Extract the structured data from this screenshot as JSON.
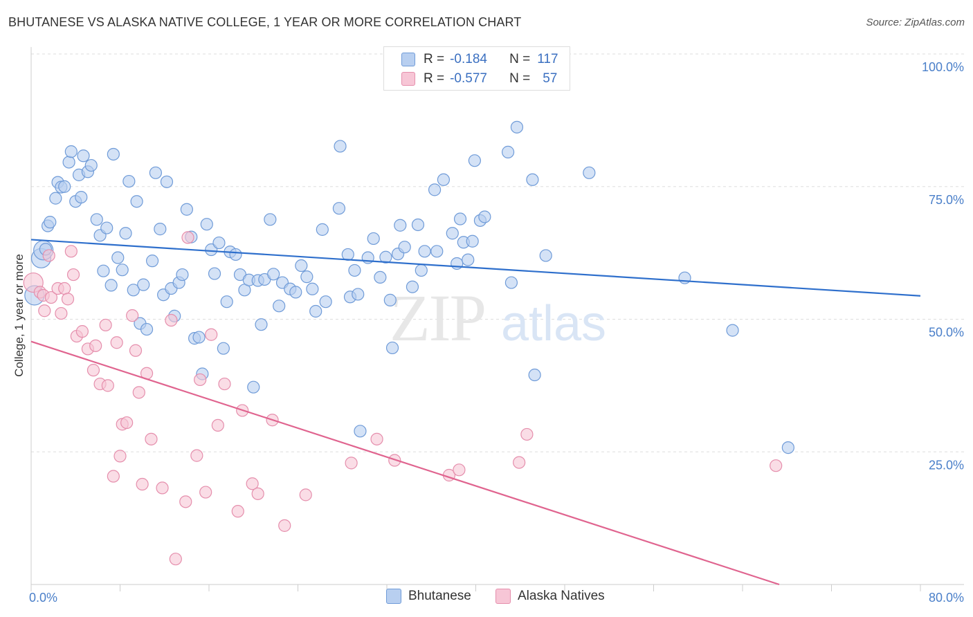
{
  "title": "BHUTANESE VS ALASKA NATIVE COLLEGE, 1 YEAR OR MORE CORRELATION CHART",
  "source": "Source: ZipAtlas.com",
  "watermark": {
    "zip": "ZIP",
    "atlas": "atlas"
  },
  "legend": {
    "rows": [
      {
        "r_label": "R =",
        "r_value": "-0.184",
        "n_label": "N =",
        "n_value": "117"
      },
      {
        "r_label": "R =",
        "r_value": "-0.577",
        "n_label": "N =",
        "n_value": "57"
      }
    ]
  },
  "chart_data": {
    "type": "scatter",
    "title": "BHUTANESE VS ALASKA NATIVE COLLEGE, 1 YEAR OR MORE CORRELATION CHART",
    "xlabel": "",
    "ylabel": "College, 1 year or more",
    "xlim": [
      0,
      80
    ],
    "ylim": [
      0,
      100
    ],
    "x_tick_labels": [
      "0.0%",
      "80.0%"
    ],
    "y_tick_labels": [
      "25.0%",
      "50.0%",
      "75.0%",
      "100.0%"
    ],
    "y_tick_values": [
      25,
      50,
      75,
      100
    ],
    "grid": true,
    "colors": {
      "blue": "#6f9bd8",
      "blue_fill": "#b8cff0",
      "blue_line": "#2e6fcc",
      "pink": "#e58eac",
      "pink_fill": "#f7c6d6",
      "pink_line": "#e0648f",
      "tick": "#4a7fc9"
    },
    "series": [
      {
        "name": "Bhutanese",
        "r": -0.184,
        "n": 117,
        "trend": {
          "x": [
            0,
            80
          ],
          "y": [
            65.0,
            54.4
          ]
        },
        "points": [
          [
            0.3,
            54.5
          ],
          [
            0.9,
            61.5
          ],
          [
            1.1,
            63.0
          ],
          [
            1.3,
            63.2
          ],
          [
            1.5,
            67.6
          ],
          [
            1.7,
            68.3
          ],
          [
            2.2,
            72.8
          ],
          [
            2.4,
            75.8
          ],
          [
            2.7,
            74.9
          ],
          [
            3.0,
            75.0
          ],
          [
            3.4,
            79.6
          ],
          [
            3.6,
            81.6
          ],
          [
            4.0,
            72.2
          ],
          [
            4.3,
            77.2
          ],
          [
            4.5,
            73.0
          ],
          [
            4.7,
            80.8
          ],
          [
            5.1,
            77.8
          ],
          [
            5.4,
            79.0
          ],
          [
            5.9,
            68.8
          ],
          [
            6.2,
            65.8
          ],
          [
            6.5,
            59.1
          ],
          [
            6.8,
            67.2
          ],
          [
            7.2,
            56.4
          ],
          [
            7.4,
            81.1
          ],
          [
            7.8,
            61.6
          ],
          [
            8.2,
            59.3
          ],
          [
            8.5,
            66.2
          ],
          [
            8.8,
            76.0
          ],
          [
            9.2,
            55.5
          ],
          [
            9.5,
            72.2
          ],
          [
            9.8,
            49.2
          ],
          [
            10.1,
            56.5
          ],
          [
            10.4,
            48.1
          ],
          [
            10.9,
            61.0
          ],
          [
            11.2,
            77.6
          ],
          [
            11.6,
            67.0
          ],
          [
            11.9,
            54.6
          ],
          [
            12.2,
            75.9
          ],
          [
            12.6,
            55.8
          ],
          [
            12.9,
            50.6
          ],
          [
            13.3,
            56.9
          ],
          [
            13.6,
            58.4
          ],
          [
            14.0,
            70.7
          ],
          [
            14.4,
            65.5
          ],
          [
            14.7,
            46.4
          ],
          [
            15.1,
            46.6
          ],
          [
            15.4,
            39.7
          ],
          [
            15.8,
            67.9
          ],
          [
            16.2,
            63.1
          ],
          [
            16.5,
            58.6
          ],
          [
            16.9,
            64.4
          ],
          [
            17.3,
            44.5
          ],
          [
            17.6,
            53.3
          ],
          [
            17.9,
            62.7
          ],
          [
            18.4,
            62.2
          ],
          [
            18.8,
            58.4
          ],
          [
            19.2,
            55.5
          ],
          [
            19.6,
            57.4
          ],
          [
            20.0,
            37.2
          ],
          [
            20.4,
            57.3
          ],
          [
            20.7,
            49.0
          ],
          [
            21.0,
            57.5
          ],
          [
            21.5,
            68.8
          ],
          [
            21.8,
            58.5
          ],
          [
            22.3,
            52.5
          ],
          [
            22.6,
            56.9
          ],
          [
            23.3,
            55.7
          ],
          [
            23.8,
            55.1
          ],
          [
            24.3,
            60.1
          ],
          [
            24.8,
            58.0
          ],
          [
            25.3,
            55.7
          ],
          [
            25.6,
            51.5
          ],
          [
            26.2,
            66.9
          ],
          [
            26.5,
            53.3
          ],
          [
            27.7,
            70.9
          ],
          [
            27.8,
            82.6
          ],
          [
            28.5,
            62.2
          ],
          [
            28.7,
            54.2
          ],
          [
            29.1,
            59.2
          ],
          [
            29.4,
            54.7
          ],
          [
            29.6,
            28.9
          ],
          [
            30.3,
            61.6
          ],
          [
            30.8,
            65.2
          ],
          [
            31.4,
            57.9
          ],
          [
            31.9,
            61.7
          ],
          [
            32.3,
            53.6
          ],
          [
            32.5,
            44.6
          ],
          [
            33.0,
            62.3
          ],
          [
            33.2,
            67.7
          ],
          [
            33.6,
            63.6
          ],
          [
            34.3,
            56.1
          ],
          [
            34.8,
            67.8
          ],
          [
            35.1,
            59.2
          ],
          [
            35.4,
            62.8
          ],
          [
            36.3,
            74.4
          ],
          [
            36.5,
            62.8
          ],
          [
            37.1,
            76.3
          ],
          [
            37.9,
            66.2
          ],
          [
            38.3,
            60.5
          ],
          [
            38.6,
            68.9
          ],
          [
            38.9,
            64.5
          ],
          [
            39.3,
            61.2
          ],
          [
            39.7,
            64.7
          ],
          [
            39.9,
            79.9
          ],
          [
            40.4,
            68.6
          ],
          [
            40.8,
            69.3
          ],
          [
            42.9,
            81.5
          ],
          [
            43.2,
            56.9
          ],
          [
            43.7,
            86.2
          ],
          [
            45.1,
            76.3
          ],
          [
            45.3,
            39.5
          ],
          [
            46.3,
            62.0
          ],
          [
            50.2,
            77.6
          ],
          [
            58.8,
            57.8
          ],
          [
            63.1,
            47.9
          ],
          [
            68.1,
            25.8
          ]
        ]
      },
      {
        "name": "Alaska Natives",
        "r": -0.577,
        "n": 57,
        "trend": {
          "x": [
            0,
            67.3
          ],
          "y": [
            45.8,
            0
          ]
        },
        "points": [
          [
            0.2,
            56.9
          ],
          [
            0.8,
            55.1
          ],
          [
            1.1,
            54.5
          ],
          [
            1.2,
            51.6
          ],
          [
            1.6,
            62.0
          ],
          [
            1.8,
            54.1
          ],
          [
            2.4,
            55.8
          ],
          [
            2.7,
            51.1
          ],
          [
            3.0,
            55.8
          ],
          [
            3.3,
            53.8
          ],
          [
            3.6,
            62.8
          ],
          [
            3.8,
            58.4
          ],
          [
            4.1,
            46.8
          ],
          [
            4.6,
            47.7
          ],
          [
            5.1,
            44.4
          ],
          [
            5.6,
            40.4
          ],
          [
            5.8,
            45.0
          ],
          [
            6.2,
            37.8
          ],
          [
            6.7,
            48.9
          ],
          [
            6.9,
            37.5
          ],
          [
            7.4,
            20.4
          ],
          [
            7.7,
            45.6
          ],
          [
            8.0,
            24.2
          ],
          [
            8.2,
            30.2
          ],
          [
            8.6,
            30.5
          ],
          [
            9.1,
            50.7
          ],
          [
            9.4,
            44.1
          ],
          [
            9.7,
            36.2
          ],
          [
            10.0,
            18.9
          ],
          [
            10.4,
            39.8
          ],
          [
            10.8,
            27.4
          ],
          [
            11.8,
            18.2
          ],
          [
            12.6,
            49.8
          ],
          [
            13.0,
            4.8
          ],
          [
            13.9,
            15.6
          ],
          [
            14.1,
            65.4
          ],
          [
            14.9,
            24.3
          ],
          [
            15.2,
            38.6
          ],
          [
            15.7,
            17.4
          ],
          [
            16.2,
            47.1
          ],
          [
            16.8,
            30.0
          ],
          [
            17.4,
            37.8
          ],
          [
            18.6,
            13.8
          ],
          [
            19.0,
            32.8
          ],
          [
            19.9,
            19.0
          ],
          [
            20.4,
            17.1
          ],
          [
            21.7,
            31.0
          ],
          [
            22.8,
            11.1
          ],
          [
            24.7,
            16.9
          ],
          [
            28.8,
            22.9
          ],
          [
            31.1,
            27.4
          ],
          [
            32.7,
            23.4
          ],
          [
            37.6,
            20.6
          ],
          [
            38.5,
            21.6
          ],
          [
            43.9,
            23.0
          ],
          [
            44.6,
            28.3
          ],
          [
            67.0,
            22.4
          ]
        ]
      }
    ]
  }
}
